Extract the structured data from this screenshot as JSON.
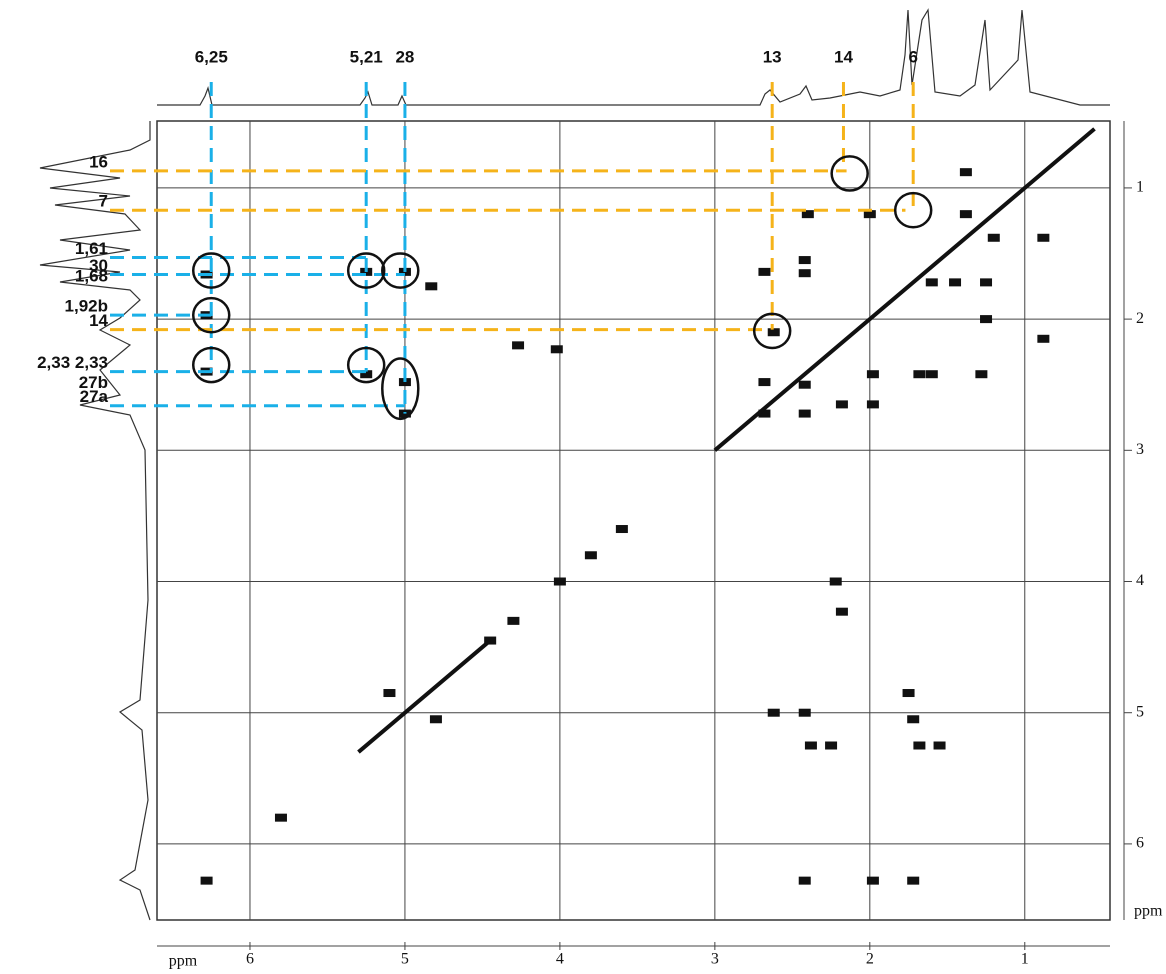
{
  "chart_data": {
    "type": "scatter",
    "xlim": [
      6.6,
      0.45
    ],
    "ylim": [
      0.49,
      6.58
    ],
    "xticks": [
      6,
      5,
      4,
      3,
      2,
      1
    ],
    "yticks": [
      1,
      2,
      3,
      4,
      5,
      6
    ],
    "xlabel": "ppm",
    "ylabel": "ppm",
    "grid": true,
    "series": [
      {
        "color": "#111111",
        "x": [
          6.28,
          6.28,
          6.28,
          6.28,
          5.25,
          5.0,
          4.83,
          5.25,
          5.0,
          5.0,
          4.27,
          4.02,
          2.62,
          2.68,
          2.68,
          2.42,
          2.42,
          2.18,
          1.98,
          1.98,
          1.68,
          1.6,
          1.28,
          2.68,
          2.42,
          2.42,
          1.6,
          1.45,
          1.25,
          1.25,
          0.88,
          0.88,
          2.62,
          2.42,
          2.38,
          2.25,
          1.72,
          1.68,
          1.55,
          2.42,
          1.98,
          1.72,
          2.22,
          2.18,
          1.75,
          5.1,
          4.8,
          2.4,
          2.0,
          1.38,
          1.38,
          1.2,
          5.8,
          4.0,
          3.6,
          3.8,
          4.3,
          4.45
        ],
        "values": [
          1.66,
          1.97,
          2.4,
          6.28,
          1.64,
          1.64,
          1.75,
          2.42,
          2.48,
          2.72,
          2.2,
          2.23,
          2.1,
          2.48,
          2.72,
          2.72,
          2.5,
          2.65,
          2.65,
          2.42,
          2.42,
          2.42,
          2.42,
          1.64,
          1.65,
          1.55,
          1.72,
          1.72,
          1.72,
          2.0,
          2.15,
          1.38,
          5.0,
          5.0,
          5.25,
          5.25,
          5.05,
          5.25,
          5.25,
          6.28,
          6.28,
          6.28,
          4.0,
          4.23,
          4.85,
          4.85,
          5.05,
          1.2,
          1.2,
          0.88,
          1.2,
          1.38,
          5.8,
          4.0,
          3.6,
          3.8,
          4.3,
          4.45
        ]
      },
      {
        "color": "#111111",
        "line": true,
        "x": [
          5.3,
          4.45,
          3.7,
          3.0,
          0.55
        ],
        "values": [
          5.3,
          4.45,
          null,
          3.0,
          0.55
        ]
      }
    ],
    "top_labels": [
      {
        "text": "6,25",
        "x": 6.25,
        "y": 2.4,
        "color": "#1ab0e8"
      },
      {
        "text": "5,21",
        "x": 5.25,
        "y": 2.4,
        "color": "#1ab0e8"
      },
      {
        "text": "28",
        "x": 5.0,
        "y": 2.72,
        "color": "#1ab0e8"
      },
      {
        "text": "13",
        "x": 2.63,
        "y": 2.08,
        "color": "#f5b31a"
      },
      {
        "text": "14",
        "x": 2.17,
        "y": 0.87,
        "color": "#f5b31a"
      },
      {
        "text": "6",
        "x": 1.72,
        "y": 1.17,
        "color": "#f5b31a"
      }
    ],
    "left_labels": [
      {
        "text": "16",
        "y": 0.87,
        "x": 2.15,
        "color": "#f5b31a"
      },
      {
        "text": "7",
        "y": 1.17,
        "x": 1.77,
        "color": "#f5b31a"
      },
      {
        "text": "1,61",
        "y": 1.53,
        "x": 5.25,
        "color": "#1ab0e8"
      },
      {
        "text": "30",
        "y": 1.66,
        "x": 5.0,
        "color": "#1ab0e8"
      },
      {
        "text": "1,68",
        "y": 1.74
      },
      {
        "text": "1,92b",
        "y": 1.97,
        "x": 6.25,
        "color": "#1ab0e8"
      },
      {
        "text": "14",
        "y": 2.08,
        "x": 2.65,
        "color": "#f5b31a"
      },
      {
        "text": "2,33 2,33",
        "y": 2.4,
        "x": 5.25,
        "color": "#1ab0e8"
      },
      {
        "text": "27b",
        "y": 2.55
      },
      {
        "text": "27a",
        "y": 2.66,
        "x": 5.0,
        "color": "#1ab0e8"
      }
    ],
    "circles": [
      {
        "x": 6.25,
        "y": [
          1.5,
          1.76
        ]
      },
      {
        "x": 6.25,
        "y": [
          1.84,
          2.1
        ]
      },
      {
        "x": 6.25,
        "y": [
          2.22,
          2.48
        ]
      },
      {
        "x": 5.25,
        "y": [
          1.5,
          1.76
        ]
      },
      {
        "x": 5.03,
        "y": [
          1.5,
          1.76
        ]
      },
      {
        "x": 5.25,
        "y": [
          2.22,
          2.48
        ]
      },
      {
        "x": 5.03,
        "y": [
          2.3,
          2.76
        ]
      },
      {
        "x": 2.63,
        "y": [
          1.96,
          2.22
        ]
      },
      {
        "x": 2.13,
        "y": [
          0.76,
          1.02
        ]
      },
      {
        "x": 1.72,
        "y": [
          1.04,
          1.3
        ]
      }
    ]
  }
}
